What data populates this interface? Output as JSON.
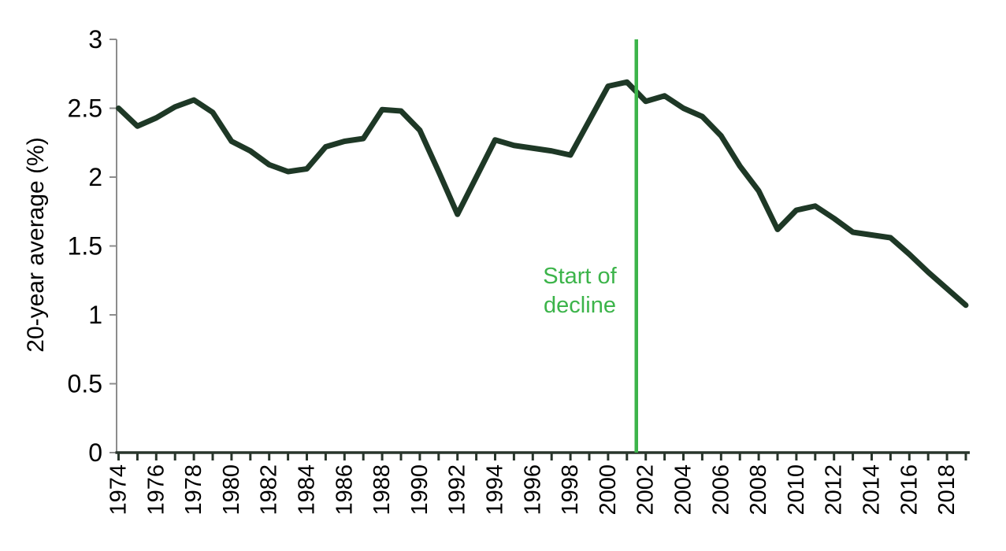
{
  "chart_data": {
    "type": "line",
    "title": "",
    "xlabel": "",
    "ylabel": "20-year average (%)",
    "ylim": [
      0,
      3
    ],
    "y_ticks": [
      0,
      0.5,
      1,
      1.5,
      2,
      2.5,
      3
    ],
    "x_label_step": 2,
    "grid": false,
    "legend": false,
    "x": [
      1974,
      1975,
      1976,
      1977,
      1978,
      1979,
      1980,
      1981,
      1982,
      1983,
      1984,
      1985,
      1986,
      1987,
      1988,
      1989,
      1990,
      1991,
      1992,
      1993,
      1994,
      1995,
      1996,
      1997,
      1998,
      1999,
      2000,
      2001,
      2002,
      2003,
      2004,
      2005,
      2006,
      2007,
      2008,
      2009,
      2010,
      2011,
      2012,
      2013,
      2014,
      2015,
      2016,
      2017,
      2018,
      2019
    ],
    "series": [
      {
        "name": "20-year average (%)",
        "color": "#1e3826",
        "values": [
          2.5,
          2.37,
          2.43,
          2.51,
          2.56,
          2.47,
          2.26,
          2.19,
          2.09,
          2.04,
          2.06,
          2.22,
          2.26,
          2.28,
          2.49,
          2.48,
          2.34,
          2.04,
          1.73,
          2.0,
          2.27,
          2.23,
          2.21,
          2.19,
          2.16,
          2.41,
          2.66,
          2.69,
          2.55,
          2.59,
          2.5,
          2.44,
          2.3,
          2.08,
          1.9,
          1.62,
          1.76,
          1.79,
          1.7,
          1.6,
          1.58,
          1.56,
          1.44,
          1.31,
          1.19,
          1.07
        ]
      }
    ],
    "annotation": {
      "label": "Start of\ndecline",
      "x_year": 2001.5,
      "color": "#3cb44a"
    },
    "axis_colors": {
      "x_axis": "#28352b",
      "y_axis": "#8c8c8c"
    }
  }
}
